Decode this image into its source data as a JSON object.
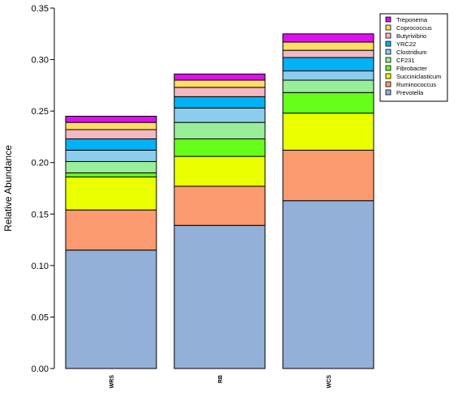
{
  "chart_data": {
    "type": "bar",
    "stacked": true,
    "title": "",
    "xlabel": "",
    "ylabel": "Relative Abundance",
    "ylim": [
      0,
      0.35
    ],
    "yticks": [
      "0.00",
      "0.05",
      "0.10",
      "0.15",
      "0.20",
      "0.25",
      "0.30",
      "0.35"
    ],
    "categories": [
      "WRS",
      "RB",
      "WCS"
    ],
    "legend_position": "top-right",
    "series": [
      {
        "name": "Prevotella",
        "color": "#92b0d8",
        "values": [
          0.115,
          0.139,
          0.163
        ]
      },
      {
        "name": "Ruminococcus",
        "color": "#fc9a70",
        "values": [
          0.039,
          0.038,
          0.049
        ]
      },
      {
        "name": "Succiniclasticum",
        "color": "#eaff00",
        "values": [
          0.032,
          0.029,
          0.036
        ]
      },
      {
        "name": "Fibrobacter",
        "color": "#66ff1a",
        "values": [
          0.004,
          0.017,
          0.02
        ]
      },
      {
        "name": "CF231",
        "color": "#99ee99",
        "values": [
          0.011,
          0.016,
          0.012
        ]
      },
      {
        "name": "Clostridium",
        "color": "#8ccdee",
        "values": [
          0.011,
          0.014,
          0.009
        ]
      },
      {
        "name": "YRC22",
        "color": "#00b2f5",
        "values": [
          0.011,
          0.011,
          0.013
        ]
      },
      {
        "name": "Butyrivibrio",
        "color": "#f3b8c2",
        "values": [
          0.009,
          0.009,
          0.007
        ]
      },
      {
        "name": "Coprococcus",
        "color": "#ffdc66",
        "values": [
          0.007,
          0.007,
          0.008
        ]
      },
      {
        "name": "Treponema",
        "color": "#dd11ee",
        "values": [
          0.006,
          0.006,
          0.008
        ]
      }
    ]
  }
}
